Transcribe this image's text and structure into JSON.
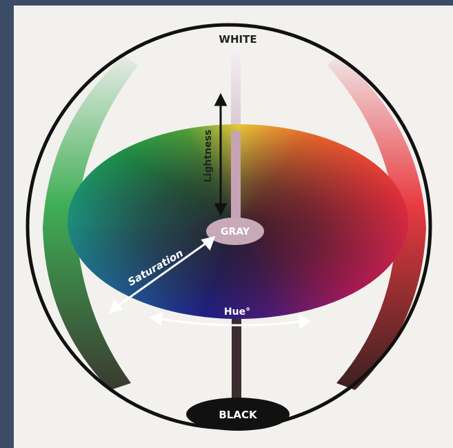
{
  "labels": {
    "top": "WHITE",
    "center": "GRAY",
    "bottom": "BLACK",
    "lightness": "Lightness",
    "saturation": "Saturation",
    "hue": "Hue°"
  }
}
